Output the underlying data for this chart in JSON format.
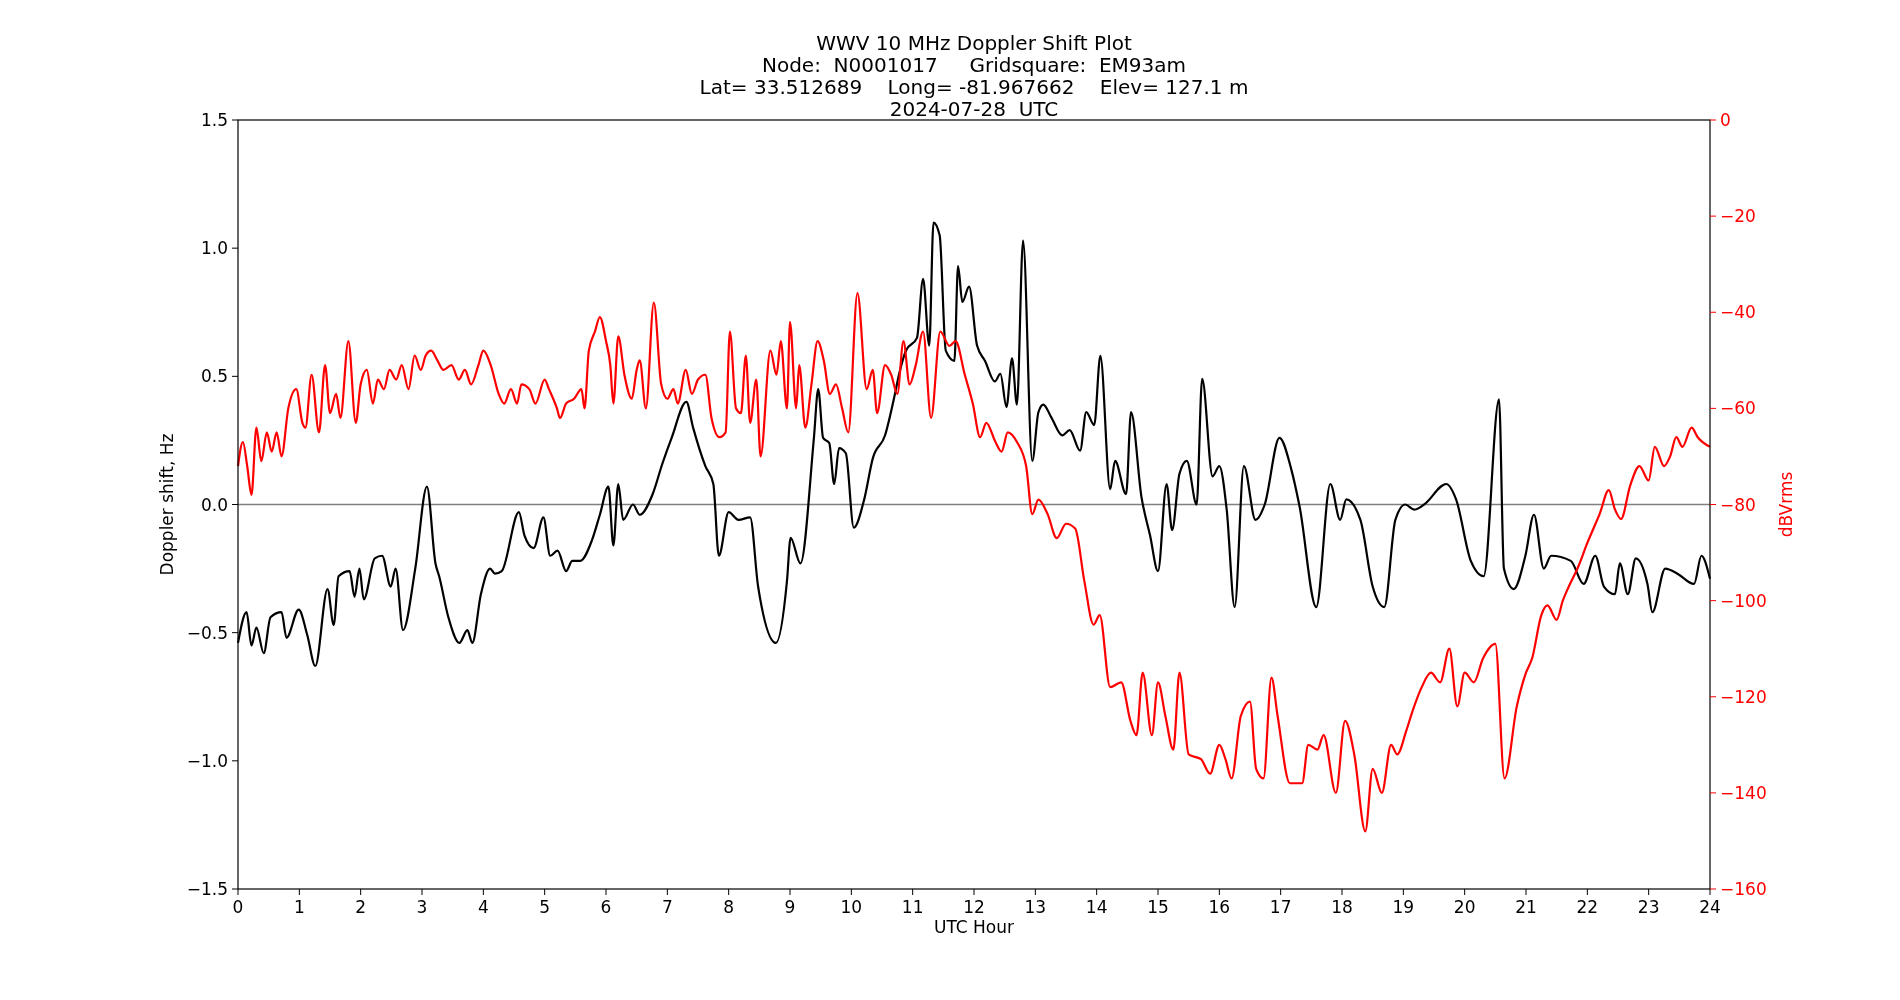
{
  "chart_data": {
    "type": "line",
    "title": "WWV 10 MHz Doppler Shift Plot",
    "subtitle": "Node:  N0001017     Gridsquare:  EM93am\nLat= 33.512689    Long= -81.967662    Elev= 127.1 m\n2024-07-28  UTC",
    "xlabel": "UTC Hour",
    "ylabel": "Doppler shift, Hz",
    "y2label": "dBVrms",
    "xlim": [
      0,
      24
    ],
    "xticks": [
      0,
      1,
      2,
      3,
      4,
      5,
      6,
      7,
      8,
      9,
      10,
      11,
      12,
      13,
      14,
      15,
      16,
      17,
      18,
      19,
      20,
      21,
      22,
      23,
      24
    ],
    "ylim": [
      -1.5,
      1.5
    ],
    "yticks": [
      {
        "value": -1.5,
        "label": "−1.5"
      },
      {
        "value": -1,
        "label": "−1.0"
      },
      {
        "value": -0.5,
        "label": "−0.5"
      },
      {
        "value": 0,
        "label": "0.0"
      },
      {
        "value": 0.5,
        "label": "0.5"
      },
      {
        "value": 1,
        "label": "1.0"
      },
      {
        "value": 1.5,
        "label": "1.5"
      }
    ],
    "y2lim": [
      -160,
      0
    ],
    "y2ticks": [
      {
        "value": -160,
        "label": "−160"
      },
      {
        "value": -140,
        "label": "−140"
      },
      {
        "value": -120,
        "label": "−120"
      },
      {
        "value": -100,
        "label": "−100"
      },
      {
        "value": -80,
        "label": "−80"
      },
      {
        "value": -60,
        "label": "−60"
      },
      {
        "value": -40,
        "label": "−40"
      },
      {
        "value": -20,
        "label": "−20"
      },
      {
        "value": 0,
        "label": "0"
      }
    ],
    "grid": false,
    "ref_lines": [
      {
        "axis": "y",
        "value": 0,
        "color": "#808080"
      }
    ],
    "series": [
      {
        "color": "#000000",
        "x": [
          0,
          0.14,
          0.22,
          0.3,
          0.42,
          0.53,
          0.71,
          0.79,
          0.99,
          1.13,
          1.26,
          1.46,
          1.56,
          1.64,
          1.82,
          1.9,
          1.98,
          2.05,
          2.23,
          2.35,
          2.49,
          2.57,
          2.69,
          2.89,
          3.08,
          3.22,
          3.28,
          3.43,
          3.61,
          3.74,
          3.82,
          3.96,
          4.11,
          4.19,
          4.3,
          4.58,
          4.67,
          4.82,
          4.98,
          5.09,
          5.21,
          5.35,
          5.45,
          5.58,
          5.77,
          5.9,
          6.04,
          6.12,
          6.2,
          6.28,
          6.44,
          6.55,
          6.76,
          6.92,
          7.07,
          7.31,
          7.42,
          7.62,
          7.75,
          7.84,
          8,
          8.16,
          8.35,
          8.48,
          8.77,
          8.95,
          9.01,
          9.17,
          9.39,
          9.46,
          9.54,
          9.64,
          9.72,
          9.8,
          9.91,
          10.04,
          10.21,
          10.35,
          10.55,
          10.71,
          10.78,
          10.89,
          11.07,
          11.17,
          11.27,
          11.34,
          11.44,
          11.54,
          11.68,
          11.74,
          11.81,
          11.92,
          12.05,
          12.18,
          12.34,
          12.43,
          12.53,
          12.62,
          12.7,
          12.8,
          12.95,
          13.05,
          13.13,
          13.26,
          13.44,
          13.56,
          13.73,
          13.83,
          13.96,
          14.06,
          14.22,
          14.3,
          14.48,
          14.56,
          14.73,
          14.87,
          15,
          15.14,
          15.23,
          15.35,
          15.47,
          15.63,
          15.72,
          15.89,
          16,
          16.12,
          16.25,
          16.4,
          16.59,
          16.74,
          16.98,
          17.17,
          17.31,
          17.58,
          17.81,
          17.97,
          18.07,
          18.3,
          18.5,
          18.69,
          18.87,
          19.03,
          19.18,
          19.34,
          19.7,
          19.86,
          20.1,
          20.31,
          20.56,
          20.64,
          20.8,
          20.99,
          21.13,
          21.29,
          21.41,
          21.73,
          21.94,
          22.13,
          22.27,
          22.45,
          22.53,
          22.66,
          22.79,
          22.98,
          23.06,
          23.27,
          23.47,
          23.74,
          23.86,
          24
        ],
        "values": [
          -0.54,
          -0.42,
          -0.55,
          -0.48,
          -0.58,
          -0.44,
          -0.42,
          -0.52,
          -0.41,
          -0.51,
          -0.63,
          -0.33,
          -0.47,
          -0.28,
          -0.26,
          -0.36,
          -0.25,
          -0.37,
          -0.21,
          -0.2,
          -0.32,
          -0.25,
          -0.49,
          -0.25,
          0.07,
          -0.23,
          -0.28,
          -0.44,
          -0.54,
          -0.49,
          -0.54,
          -0.35,
          -0.25,
          -0.27,
          -0.26,
          -0.03,
          -0.12,
          -0.17,
          -0.05,
          -0.2,
          -0.18,
          -0.26,
          -0.22,
          -0.22,
          -0.14,
          -0.04,
          0.07,
          -0.16,
          0.08,
          -0.06,
          0,
          -0.04,
          0.04,
          0.16,
          0.26,
          0.4,
          0.3,
          0.15,
          0.08,
          -0.2,
          -0.03,
          -0.06,
          -0.05,
          -0.32,
          -0.54,
          -0.3,
          -0.13,
          -0.23,
          0.26,
          0.45,
          0.26,
          0.24,
          0.08,
          0.22,
          0.2,
          -0.09,
          0.02,
          0.18,
          0.27,
          0.43,
          0.51,
          0.6,
          0.65,
          0.88,
          0.62,
          1.1,
          1.05,
          0.6,
          0.56,
          0.93,
          0.79,
          0.85,
          0.62,
          0.56,
          0.48,
          0.51,
          0.38,
          0.57,
          0.39,
          1.03,
          0.17,
          0.36,
          0.39,
          0.34,
          0.27,
          0.29,
          0.21,
          0.36,
          0.31,
          0.58,
          0.06,
          0.17,
          0.04,
          0.36,
          0.03,
          -0.12,
          -0.26,
          0.08,
          -0.1,
          0.12,
          0.17,
          0,
          0.49,
          0.11,
          0.15,
          -0.02,
          -0.4,
          0.15,
          -0.06,
          0,
          0.26,
          0.14,
          -0.01,
          -0.4,
          0.08,
          -0.06,
          0.02,
          -0.06,
          -0.32,
          -0.4,
          -0.06,
          0,
          -0.02,
          0,
          0.08,
          0.02,
          -0.22,
          -0.28,
          0.41,
          -0.25,
          -0.33,
          -0.2,
          -0.04,
          -0.25,
          -0.2,
          -0.22,
          -0.31,
          -0.2,
          -0.32,
          -0.35,
          -0.23,
          -0.35,
          -0.21,
          -0.31,
          -0.42,
          -0.25,
          -0.27,
          -0.31,
          -0.2,
          -0.29
        ]
      },
      {
        "color": "#ff0000",
        "axis": "y2",
        "x": [
          0,
          0.08,
          0.15,
          0.22,
          0.3,
          0.38,
          0.47,
          0.55,
          0.63,
          0.71,
          0.82,
          0.95,
          1.05,
          1.1,
          1.2,
          1.32,
          1.42,
          1.5,
          1.6,
          1.67,
          1.8,
          1.92,
          2,
          2.1,
          2.2,
          2.28,
          2.38,
          2.47,
          2.58,
          2.67,
          2.78,
          2.88,
          2.98,
          3.06,
          3.15,
          3.25,
          3.35,
          3.48,
          3.6,
          3.7,
          3.8,
          3.92,
          4,
          4.12,
          4.25,
          4.34,
          4.45,
          4.55,
          4.62,
          4.75,
          4.85,
          5,
          5.07,
          5.2,
          5.25,
          5.35,
          5.48,
          5.6,
          5.65,
          5.72,
          5.82,
          5.9,
          6,
          6.07,
          6.12,
          6.2,
          6.3,
          6.42,
          6.5,
          6.55,
          6.65,
          6.78,
          6.9,
          7,
          7.1,
          7.17,
          7.3,
          7.4,
          7.5,
          7.62,
          7.72,
          7.85,
          7.95,
          8.02,
          8.12,
          8.2,
          8.28,
          8.35,
          8.45,
          8.52,
          8.68,
          8.78,
          8.85,
          8.95,
          9,
          9.1,
          9.15,
          9.25,
          9.35,
          9.45,
          9.55,
          9.65,
          9.75,
          9.85,
          9.95,
          10.1,
          10.25,
          10.35,
          10.42,
          10.55,
          10.65,
          10.75,
          10.85,
          10.95,
          11.05,
          11.17,
          11.3,
          11.45,
          11.6,
          11.7,
          11.85,
          11.98,
          12.1,
          12.2,
          12.35,
          12.45,
          12.55,
          12.7,
          12.85,
          12.95,
          13.05,
          13.2,
          13.35,
          13.5,
          13.65,
          13.8,
          13.95,
          14.05,
          14.22,
          14.4,
          14.55,
          14.65,
          14.75,
          14.9,
          15,
          15.12,
          15.25,
          15.35,
          15.5,
          15.7,
          15.85,
          16,
          16.1,
          16.2,
          16.35,
          16.5,
          16.6,
          16.72,
          16.85,
          16.95,
          17.15,
          17.35,
          17.45,
          17.6,
          17.7,
          17.9,
          18.05,
          18.2,
          18.38,
          18.5,
          18.65,
          18.8,
          18.9,
          19.05,
          19.15,
          19.3,
          19.45,
          19.6,
          19.75,
          19.88,
          20,
          20.15,
          20.3,
          20.5,
          20.65,
          20.85,
          21,
          21.1,
          21.25,
          21.35,
          21.5,
          21.6,
          21.7,
          21.85,
          22,
          22.1,
          22.2,
          22.35,
          22.45,
          22.55,
          22.7,
          22.85,
          23,
          23.1,
          23.25,
          23.35,
          23.45,
          23.55,
          23.7,
          23.8,
          24
        ],
        "values": [
          -72,
          -67,
          -72,
          -78,
          -64,
          -71,
          -65,
          -69,
          -65,
          -70,
          -60,
          -56,
          -63,
          -64,
          -53,
          -65,
          -51,
          -61,
          -57,
          -62,
          -46,
          -63,
          -55,
          -52,
          -59,
          -54,
          -56,
          -52,
          -54,
          -51,
          -56,
          -49,
          -52,
          -49,
          -48,
          -50,
          -52,
          -51,
          -54,
          -52,
          -55,
          -51,
          -48,
          -51,
          -57,
          -59,
          -56,
          -59,
          -55,
          -56,
          -59,
          -54,
          -56,
          -60,
          -62,
          -59,
          -58,
          -56,
          -60,
          -48,
          -44,
          -41,
          -46,
          -51,
          -59,
          -45,
          -53,
          -58,
          -52,
          -50,
          -60,
          -38,
          -55,
          -58,
          -56,
          -59,
          -52,
          -57,
          -54,
          -53,
          -62,
          -66,
          -65,
          -44,
          -60,
          -61,
          -49,
          -63,
          -54,
          -70,
          -48,
          -53,
          -46,
          -60,
          -42,
          -60,
          -51,
          -64,
          -55,
          -46,
          -50,
          -57,
          -55,
          -60,
          -65,
          -36,
          -56,
          -52,
          -61,
          -51,
          -53,
          -57,
          -46,
          -55,
          -51,
          -44,
          -62,
          -44,
          -47,
          -46,
          -53,
          -59,
          -66,
          -63,
          -67,
          -69,
          -65,
          -67,
          -72,
          -82,
          -79,
          -82,
          -87,
          -84,
          -85,
          -96,
          -105,
          -103,
          -118,
          -117,
          -125,
          -128,
          -115,
          -128,
          -117,
          -124,
          -131,
          -115,
          -132,
          -133,
          -136,
          -130,
          -133,
          -137,
          -124,
          -121,
          -135,
          -137,
          -116,
          -124,
          -138,
          -138,
          -130,
          -131,
          -128,
          -140,
          -125,
          -132,
          -148,
          -135,
          -140,
          -130,
          -132,
          -127,
          -123,
          -118,
          -115,
          -117,
          -110,
          -122,
          -115,
          -117,
          -112,
          -109,
          -137,
          -122,
          -115,
          -112,
          -103,
          -101,
          -104,
          -100,
          -97,
          -93,
          -88,
          -85,
          -82,
          -77,
          -81,
          -83,
          -76,
          -72,
          -75,
          -68,
          -72,
          -70,
          -66,
          -68,
          -64,
          -66,
          -68
        ]
      }
    ]
  }
}
